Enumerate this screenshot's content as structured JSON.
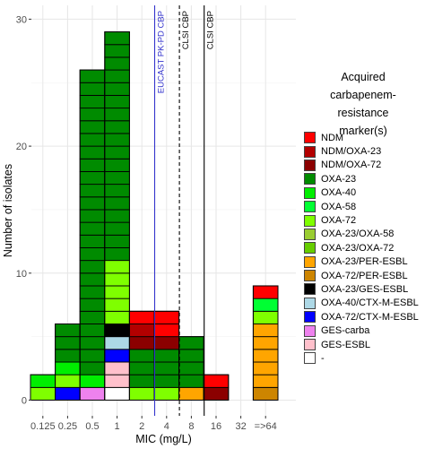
{
  "chart_data": {
    "type": "bar",
    "stacked": true,
    "xlabel": "MIC (mg/L)",
    "ylabel": "Number of isolates",
    "categories": [
      "0.125",
      "0.25",
      "0.5",
      "1",
      "2",
      "4",
      "8",
      "16",
      "32",
      "=>64"
    ],
    "y_ticks": [
      "0",
      "10",
      "20",
      "30"
    ],
    "ylim": [
      0,
      32
    ],
    "grid": true,
    "legend_position": "right",
    "legend_title": "Acquired\ncarbapenem-\nresistance\nmarker(s)",
    "series": [
      {
        "name": "NDM",
        "color": "#FF0000",
        "values": [
          0,
          0,
          0,
          0,
          1,
          2,
          0,
          1,
          0,
          1
        ]
      },
      {
        "name": "NDM/OXA-23",
        "color": "#B30000",
        "values": [
          0,
          0,
          0,
          0,
          1,
          0,
          0,
          0,
          0,
          0
        ]
      },
      {
        "name": "NDM/OXA-72",
        "color": "#8B0000",
        "values": [
          0,
          0,
          0,
          0,
          1,
          1,
          0,
          1,
          0,
          0
        ]
      },
      {
        "name": "OXA-23",
        "color": "#008B00",
        "values": [
          0,
          3,
          24,
          18,
          3,
          3,
          4,
          0,
          0,
          0
        ]
      },
      {
        "name": "OXA-40",
        "color": "#00EE00",
        "values": [
          1,
          1,
          1,
          0,
          0,
          0,
          0,
          0,
          0,
          0
        ]
      },
      {
        "name": "OXA-58",
        "color": "#00FF33",
        "values": [
          0,
          0,
          0,
          0,
          0,
          0,
          0,
          0,
          0,
          1
        ]
      },
      {
        "name": "OXA-72",
        "color": "#7FFF00",
        "values": [
          1,
          1,
          0,
          5,
          1,
          1,
          0,
          0,
          0,
          1
        ]
      },
      {
        "name": "OXA-23/OXA-58",
        "color": "#9ACD32",
        "values": [
          0,
          0,
          0,
          0,
          0,
          0,
          0,
          0,
          0,
          0
        ]
      },
      {
        "name": "OXA-23/OXA-72",
        "color": "#66CD00",
        "values": [
          0,
          0,
          0,
          0,
          0,
          0,
          0,
          0,
          0,
          0
        ]
      },
      {
        "name": "OXA-23/PER-ESBL",
        "color": "#FFA500",
        "values": [
          0,
          0,
          0,
          0,
          0,
          0,
          1,
          0,
          0,
          5
        ]
      },
      {
        "name": "OXA-72/PER-ESBL",
        "color": "#CD8500",
        "values": [
          0,
          0,
          0,
          0,
          0,
          0,
          0,
          0,
          0,
          1
        ]
      },
      {
        "name": "OXA-23/GES-ESBL",
        "color": "#000000",
        "values": [
          0,
          0,
          0,
          1,
          0,
          0,
          0,
          0,
          0,
          0
        ]
      },
      {
        "name": "OXA-40/CTX-M-ESBL",
        "color": "#ADD8E6",
        "values": [
          0,
          0,
          0,
          1,
          0,
          0,
          0,
          0,
          0,
          0
        ]
      },
      {
        "name": "OXA-72/CTX-M-ESBL",
        "color": "#0000FF",
        "values": [
          0,
          1,
          0,
          1,
          0,
          0,
          0,
          0,
          0,
          0
        ]
      },
      {
        "name": "GES-carba",
        "color": "#EE82EE",
        "values": [
          0,
          0,
          1,
          0,
          0,
          0,
          0,
          0,
          0,
          0
        ]
      },
      {
        "name": "GES-ESBL",
        "color": "#FFC0CB",
        "values": [
          0,
          0,
          0,
          2,
          0,
          0,
          0,
          0,
          0,
          0
        ]
      },
      {
        "name": "-",
        "color": "#FFFFFF",
        "values": [
          0,
          0,
          0,
          1,
          0,
          0,
          0,
          0,
          0,
          0
        ]
      }
    ],
    "reference_lines": [
      {
        "label": "EUCAST PK-PD CBP",
        "after_category": "2",
        "color": "#3333CC",
        "style": "solid"
      },
      {
        "label": "CLSI CBP",
        "after_category": "4",
        "color": "#000000",
        "style": "dashed"
      },
      {
        "label": "CLSI CBP",
        "after_category": "8",
        "color": "#000000",
        "style": "solid"
      }
    ]
  }
}
